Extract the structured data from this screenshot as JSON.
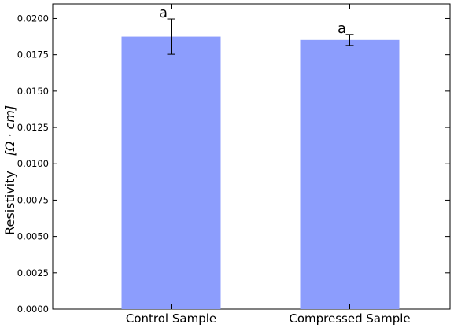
{
  "chart_data": {
    "type": "bar",
    "categories": [
      "Control Sample",
      "Compressed Sample"
    ],
    "values": [
      0.01875,
      0.01852
    ],
    "errors": [
      0.00122,
      0.00038
    ],
    "annotations": [
      "a",
      "a"
    ],
    "ylabel_text": "Resistivity",
    "ylabel_unit": "[Ω · cm]",
    "ylim": [
      0,
      0.021
    ],
    "yticks": [
      "0.0000",
      "0.0025",
      "0.0050",
      "0.0075",
      "0.0100",
      "0.0125",
      "0.0150",
      "0.0175",
      "0.0200"
    ],
    "bar_color": "#8c9dfd",
    "grid": false
  }
}
